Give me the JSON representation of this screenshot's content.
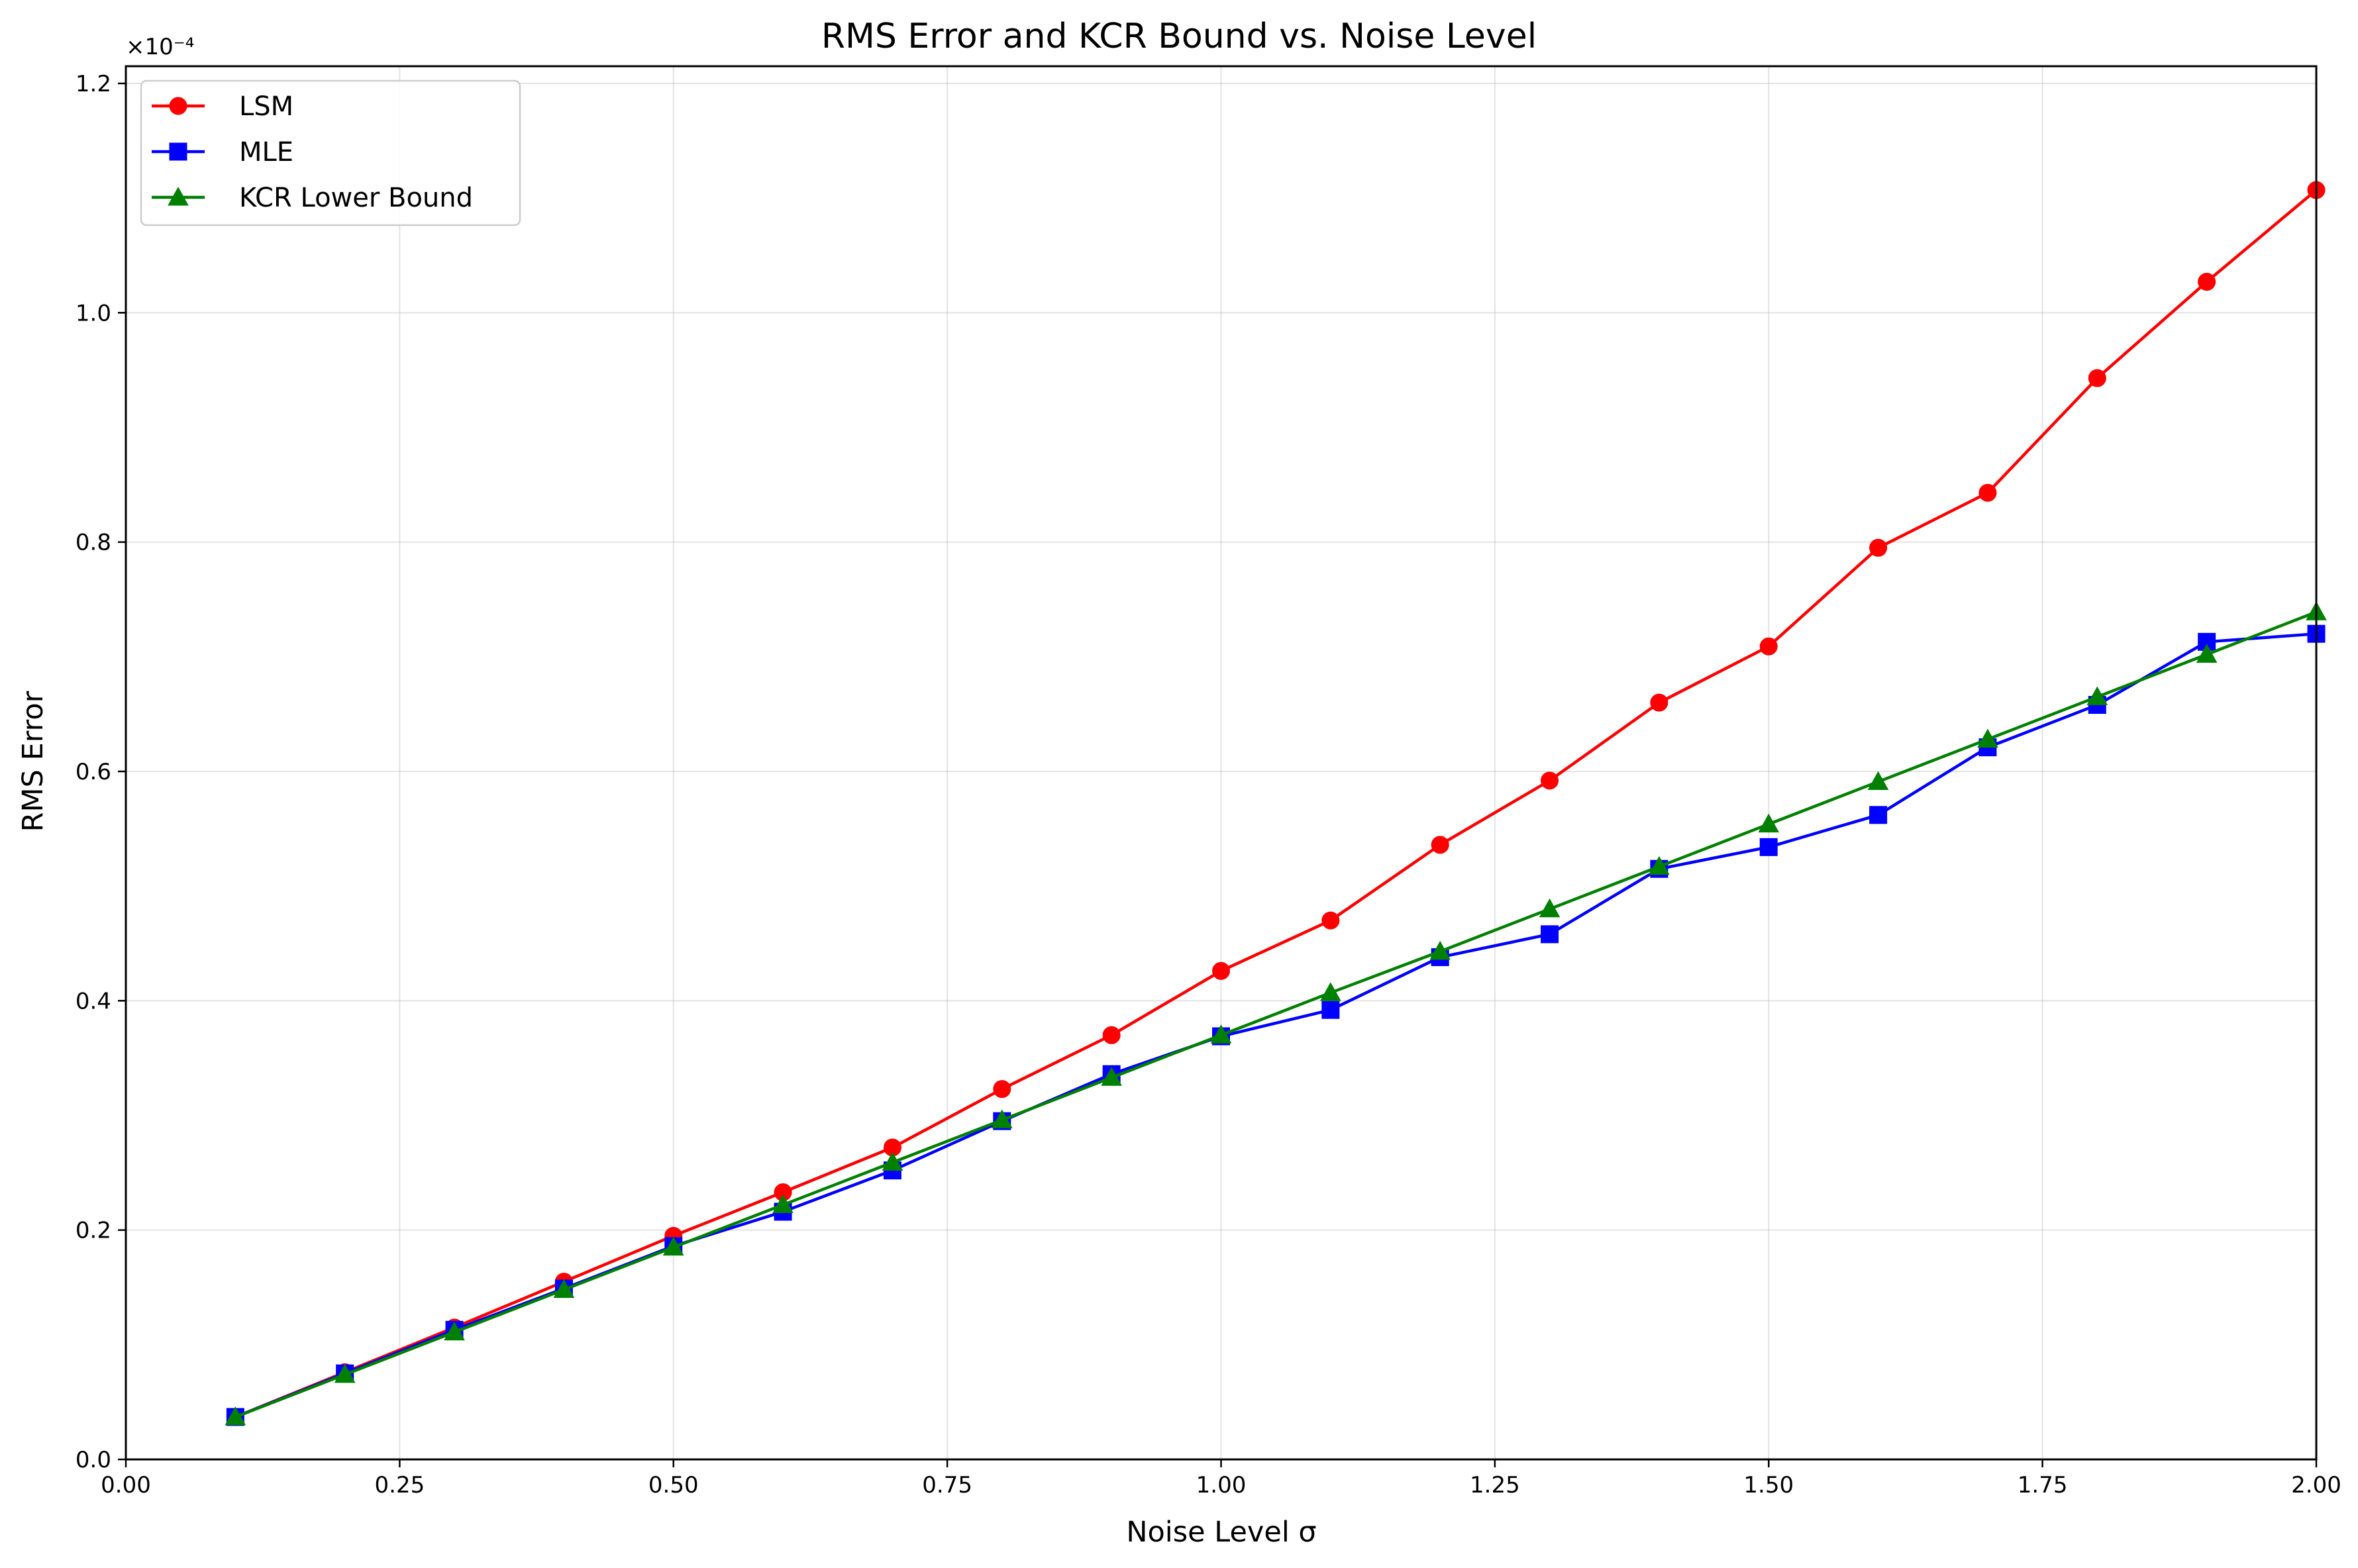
{
  "chart_data": {
    "type": "line",
    "title": "RMS Error and KCR Bound vs. Noise Level",
    "xlabel": "Noise Level σ",
    "ylabel": "RMS Error",
    "y_scale_label": "×10⁻⁴",
    "y_multiplier": 0.0001,
    "xlim": [
      0.0,
      2.0
    ],
    "ylim": [
      0.0,
      1.215
    ],
    "x_ticks": [
      0.0,
      0.25,
      0.5,
      0.75,
      1.0,
      1.25,
      1.5,
      1.75,
      2.0
    ],
    "x_tick_labels": [
      "0.00",
      "0.25",
      "0.50",
      "0.75",
      "1.00",
      "1.25",
      "1.50",
      "1.75",
      "2.00"
    ],
    "y_ticks": [
      0.0,
      0.2,
      0.4,
      0.6,
      0.8,
      1.0,
      1.2
    ],
    "y_tick_labels": [
      "0.0",
      "0.2",
      "0.4",
      "0.6",
      "0.8",
      "1.0",
      "1.2"
    ],
    "grid": true,
    "legend_position": "upper-left",
    "x": [
      0.1,
      0.2,
      0.3,
      0.4,
      0.5,
      0.6,
      0.7,
      0.8,
      0.9,
      1.0,
      1.1,
      1.2,
      1.3,
      1.4,
      1.5,
      1.6,
      1.7,
      1.8,
      1.9,
      2.0
    ],
    "series": [
      {
        "name": "LSM",
        "color": "#ff0000",
        "marker": "circle",
        "values": [
          0.037,
          0.076,
          0.115,
          0.155,
          0.195,
          0.233,
          0.272,
          0.323,
          0.37,
          0.426,
          0.47,
          0.536,
          0.592,
          0.66,
          0.709,
          0.795,
          0.843,
          0.943,
          1.027,
          1.107
        ]
      },
      {
        "name": "MLE",
        "color": "#0000ff",
        "marker": "square",
        "values": [
          0.037,
          0.075,
          0.113,
          0.149,
          0.186,
          0.216,
          0.252,
          0.295,
          0.336,
          0.369,
          0.392,
          0.438,
          0.458,
          0.515,
          0.534,
          0.562,
          0.621,
          0.658,
          0.713,
          0.72
        ]
      },
      {
        "name": "KCR Lower Bound",
        "color": "#008000",
        "marker": "triangle",
        "values": [
          0.037,
          0.074,
          0.111,
          0.148,
          0.185,
          0.222,
          0.259,
          0.296,
          0.333,
          0.37,
          0.407,
          0.443,
          0.48,
          0.517,
          0.554,
          0.591,
          0.628,
          0.665,
          0.702,
          0.739
        ]
      }
    ]
  }
}
